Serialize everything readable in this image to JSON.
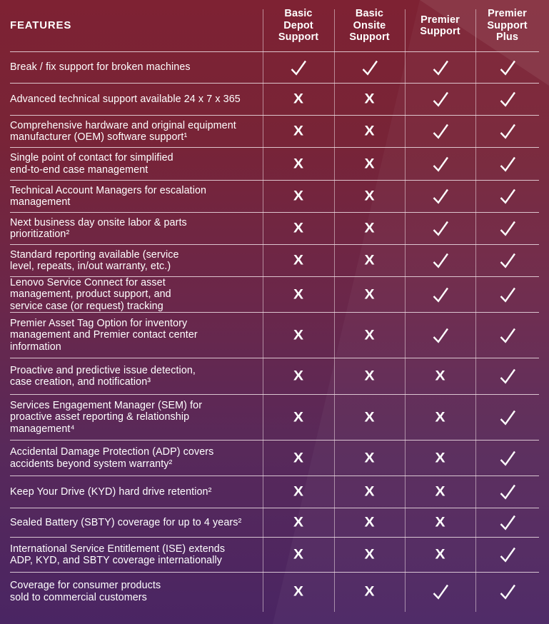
{
  "table": {
    "features_header": "FEATURES",
    "columns": [
      {
        "id": "basic-depot-support",
        "lines": [
          "Basic",
          "Depot",
          "Support"
        ]
      },
      {
        "id": "basic-onsite-support",
        "lines": [
          "Basic",
          "Onsite",
          "Support"
        ]
      },
      {
        "id": "premier-support",
        "lines": [
          "Premier",
          "Support"
        ]
      },
      {
        "id": "premier-support-plus",
        "lines": [
          "Premier",
          "Support",
          "Plus"
        ]
      }
    ],
    "rows": [
      {
        "feature_lines": [
          "Break / fix support for broken machines"
        ],
        "values": [
          "check",
          "check",
          "check",
          "check"
        ]
      },
      {
        "feature_lines": [
          "Advanced technical support available 24 x 7 x 365"
        ],
        "values": [
          "x",
          "x",
          "check",
          "check"
        ]
      },
      {
        "feature_lines": [
          "Comprehensive hardware and original equipment",
          "manufacturer (OEM) software support¹"
        ],
        "values": [
          "x",
          "x",
          "check",
          "check"
        ]
      },
      {
        "feature_lines": [
          "Single point of contact for simplified",
          "end-to-end case management"
        ],
        "values": [
          "x",
          "x",
          "check",
          "check"
        ]
      },
      {
        "feature_lines": [
          "Technical Account Managers for escalation",
          "management"
        ],
        "values": [
          "x",
          "x",
          "check",
          "check"
        ]
      },
      {
        "feature_lines": [
          "Next business day onsite labor & parts",
          "prioritization²"
        ],
        "values": [
          "x",
          "x",
          "check",
          "check"
        ]
      },
      {
        "feature_lines": [
          "Standard reporting available (service",
          "level, repeats, in/out warranty, etc.)"
        ],
        "values": [
          "x",
          "x",
          "check",
          "check"
        ]
      },
      {
        "feature_lines": [
          "Lenovo Service Connect for asset",
          "management, product support, and",
          "service case (or request) tracking"
        ],
        "values": [
          "x",
          "x",
          "check",
          "check"
        ]
      },
      {
        "feature_lines": [
          "Premier Asset Tag Option for inventory",
          "management and Premier contact center",
          "information"
        ],
        "values": [
          "x",
          "x",
          "check",
          "check"
        ]
      },
      {
        "feature_lines": [
          "Proactive and predictive issue detection,",
          "case creation, and notification³"
        ],
        "values": [
          "x",
          "x",
          "x",
          "check"
        ]
      },
      {
        "feature_lines": [
          "Services Engagement Manager (SEM) for",
          "proactive asset reporting & relationship",
          "management⁴"
        ],
        "values": [
          "x",
          "x",
          "x",
          "check"
        ]
      },
      {
        "feature_lines": [
          "Accidental Damage Protection (ADP) covers",
          "accidents beyond system warranty²"
        ],
        "values": [
          "x",
          "x",
          "x",
          "check"
        ]
      },
      {
        "feature_lines": [
          "Keep Your Drive (KYD) hard drive retention²"
        ],
        "values": [
          "x",
          "x",
          "x",
          "check"
        ]
      },
      {
        "feature_lines": [
          "Sealed Battery (SBTY) coverage for up to 4 years²"
        ],
        "values": [
          "x",
          "x",
          "x",
          "check"
        ]
      },
      {
        "feature_lines": [
          "International Service Entitlement (ISE) extends",
          "ADP, KYD, and SBTY coverage internationally"
        ],
        "values": [
          "x",
          "x",
          "x",
          "check"
        ]
      },
      {
        "feature_lines": [
          "Coverage for consumer products",
          "sold to commercial customers"
        ],
        "values": [
          "x",
          "x",
          "check",
          "check"
        ]
      }
    ],
    "icons": {
      "check": "✓",
      "x": "X"
    },
    "colors": {
      "bg_top": "#7e2233",
      "bg_bottom": "#4a2563",
      "text": "#ffffff",
      "divider": "#f0e0e6"
    }
  }
}
